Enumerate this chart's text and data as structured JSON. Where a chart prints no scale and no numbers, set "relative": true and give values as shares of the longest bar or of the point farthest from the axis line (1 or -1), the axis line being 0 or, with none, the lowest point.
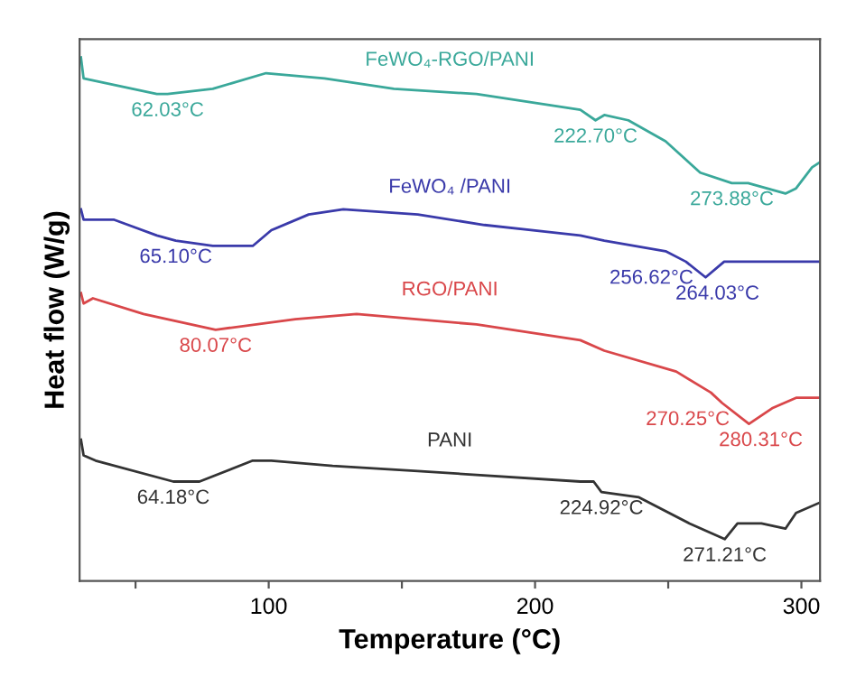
{
  "chart_data": {
    "type": "line",
    "relative": true,
    "xlabel": "Temperature (°C)",
    "ylabel": "Heat flow (W/g)",
    "xlim": [
      29,
      307
    ],
    "xticks": [
      {
        "value": 50,
        "label": null
      },
      100,
      {
        "value": 150,
        "label": null
      },
      200,
      {
        "value": 250,
        "label": null
      },
      300
    ],
    "grid": false,
    "legend": false,
    "marker": "none",
    "line_style": "solid",
    "series": [
      {
        "name": "FeWO₄-RGO/PANI",
        "color": "#3aa89a",
        "x": [
          29.5,
          30.5,
          58,
          62.03,
          79,
          99,
          121,
          147,
          178,
          217,
          222.7,
          226,
          235,
          249,
          262,
          273.88,
          280,
          294,
          298,
          304,
          307
        ],
        "values": [
          1.0,
          0.96,
          0.93,
          0.93,
          0.94,
          0.97,
          0.96,
          0.94,
          0.93,
          0.9,
          0.88,
          0.89,
          0.88,
          0.84,
          0.78,
          0.76,
          0.76,
          0.74,
          0.75,
          0.79,
          0.8
        ]
      },
      {
        "name": "FeWO₄ /PANI",
        "color": "#3a3aaa",
        "x": [
          29.5,
          30.5,
          42,
          58,
          65.1,
          79,
          94,
          101,
          115,
          128,
          156,
          181,
          217,
          226,
          249,
          256.62,
          264.03,
          271,
          294,
          307
        ],
        "values": [
          0.71,
          0.69,
          0.69,
          0.66,
          0.65,
          0.64,
          0.64,
          0.67,
          0.7,
          0.71,
          0.7,
          0.68,
          0.66,
          0.65,
          0.63,
          0.61,
          0.58,
          0.61,
          0.61,
          0.61
        ]
      },
      {
        "name": "RGO/PANI",
        "color": "#d9474a",
        "x": [
          29.5,
          30.5,
          34,
          53,
          80.07,
          110,
          133,
          178,
          217,
          226,
          253,
          266,
          270.25,
          280.31,
          289,
          298,
          307
        ],
        "values": [
          0.55,
          0.53,
          0.54,
          0.51,
          0.48,
          0.5,
          0.51,
          0.49,
          0.46,
          0.44,
          0.4,
          0.36,
          0.34,
          0.3,
          0.33,
          0.35,
          0.35
        ]
      },
      {
        "name": "PANI",
        "color": "#333333",
        "x": [
          29.5,
          30.5,
          35,
          64.18,
          74,
          94,
          101,
          124,
          156,
          217,
          222,
          224.92,
          239,
          258,
          271.21,
          276,
          285,
          294,
          298,
          307
        ],
        "values": [
          0.27,
          0.24,
          0.23,
          0.19,
          0.19,
          0.23,
          0.23,
          0.22,
          0.21,
          0.19,
          0.19,
          0.17,
          0.16,
          0.11,
          0.08,
          0.11,
          0.11,
          0.1,
          0.13,
          0.15
        ]
      }
    ],
    "annotations": [
      {
        "text": "62.03°C",
        "x": 62.03,
        "y": 0.93
      },
      {
        "text": "222.70°C",
        "x": 222.7,
        "y": 0.88
      },
      {
        "text": "273.88°C",
        "x": 273.88,
        "y": 0.76
      },
      {
        "text": "65.10°C",
        "x": 65.1,
        "y": 0.65
      },
      {
        "text": "256.62°C",
        "x": 256.62,
        "y": 0.61
      },
      {
        "text": "264.03°C",
        "x": 264.03,
        "y": 0.58
      },
      {
        "text": "80.07°C",
        "x": 80.07,
        "y": 0.48
      },
      {
        "text": "270.25°C",
        "x": 270.25,
        "y": 0.34
      },
      {
        "text": "280.31°C",
        "x": 280.31,
        "y": 0.3
      },
      {
        "text": "64.18°C",
        "x": 64.18,
        "y": 0.19
      },
      {
        "text": "224.92°C",
        "x": 224.92,
        "y": 0.17
      },
      {
        "text": "271.21°C",
        "x": 271.21,
        "y": 0.08
      }
    ]
  }
}
